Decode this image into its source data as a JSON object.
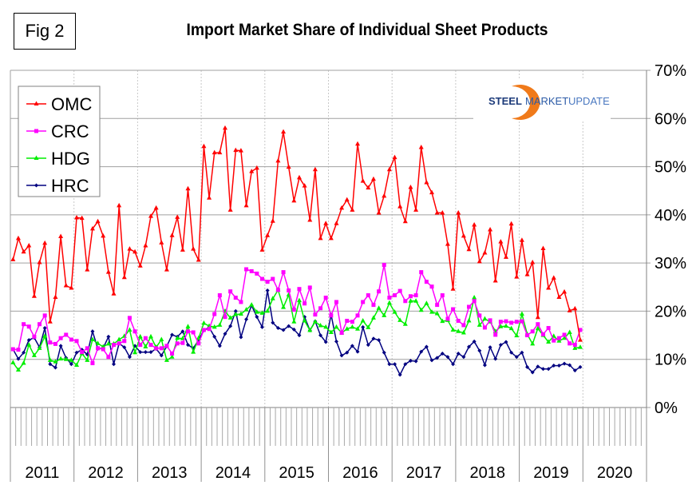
{
  "figure": {
    "label": "Fig 2"
  },
  "logo": {
    "word1": "STEEL",
    "word2": "MARKET",
    "word3": "UPDATE"
  },
  "chart_data": {
    "type": "line",
    "title": "Import Market Share of Individual Sheet Products",
    "xlabel": "",
    "ylabel": "",
    "ylim": [
      0,
      70
    ],
    "y_ticks": [
      "0%",
      "10%",
      "20%",
      "30%",
      "40%",
      "50%",
      "60%",
      "70%"
    ],
    "y_tick_values": [
      0,
      10,
      20,
      30,
      40,
      50,
      60,
      70
    ],
    "x_categories": [
      "2011",
      "2012",
      "2013",
      "2014",
      "2015",
      "2016",
      "2017",
      "2018",
      "2019",
      "2020"
    ],
    "x_frequency": "monthly",
    "x_start": "Jan 2011",
    "x_end": "Dec 2019",
    "grid": true,
    "legend_position": "top-left",
    "series": [
      {
        "name": "OMC",
        "color": "#ff0000",
        "marker": "triangle",
        "values": [
          30.7,
          35.1,
          32.3,
          33.6,
          23.1,
          30.1,
          34.1,
          17.8,
          22.9,
          35.5,
          25.3,
          24.8,
          39.4,
          39.3,
          28.6,
          37.1,
          38.6,
          35.6,
          28.1,
          23.6,
          41.9,
          27.0,
          32.9,
          32.3,
          29.4,
          33.6,
          39.7,
          41.4,
          34.2,
          28.6,
          35.7,
          39.5,
          32.7,
          45.4,
          32.9,
          30.6,
          54.2,
          43.5,
          52.9,
          52.9,
          58.0,
          41.0,
          53.4,
          53.3,
          41.9,
          49.0,
          49.7,
          32.7,
          35.7,
          38.7,
          51.2,
          57.2,
          49.9,
          42.9,
          47.7,
          46.0,
          38.9,
          49.4,
          35.1,
          38.2,
          35.1,
          38.2,
          41.4,
          43.1,
          41.0,
          54.7,
          47.0,
          45.6,
          47.4,
          40.4,
          43.9,
          49.4,
          51.9,
          41.7,
          38.6,
          45.7,
          41.0,
          54.0,
          46.7,
          44.6,
          40.4,
          40.4,
          33.9,
          24.6,
          40.4,
          35.6,
          32.8,
          37.9,
          30.3,
          32.1,
          36.9,
          26.3,
          34.4,
          31.2,
          38.1,
          27.1,
          34.7,
          27.6,
          30.1,
          18.7,
          33.0,
          24.8,
          26.9,
          22.9,
          24.0,
          20.1,
          20.5,
          14.0
        ]
      },
      {
        "name": "CRC",
        "color": "#ff00ff",
        "marker": "square",
        "values": [
          12.1,
          12.0,
          17.3,
          16.8,
          14.7,
          17.3,
          19.1,
          13.5,
          13.2,
          14.4,
          15.1,
          14.1,
          13.8,
          11.5,
          12.3,
          9.2,
          12.3,
          12.1,
          10.5,
          13.0,
          13.3,
          13.8,
          18.6,
          15.8,
          13.0,
          14.4,
          13.0,
          12.3,
          12.3,
          12.8,
          11.2,
          13.3,
          13.4,
          15.8,
          15.6,
          13.3,
          16.1,
          16.3,
          19.4,
          23.3,
          18.8,
          24.1,
          22.8,
          21.9,
          28.7,
          28.3,
          27.8,
          26.7,
          26.1,
          26.7,
          24.4,
          28.1,
          24.3,
          20.3,
          24.6,
          21.6,
          24.9,
          19.3,
          20.6,
          22.8,
          19.1,
          21.9,
          15.5,
          18.0,
          17.8,
          19.1,
          21.9,
          23.3,
          21.3,
          24.1,
          29.6,
          22.8,
          23.3,
          24.2,
          22.1,
          23.1,
          23.3,
          28.1,
          26.1,
          25.1,
          21.3,
          23.3,
          18.4,
          20.4,
          18.0,
          17.1,
          20.9,
          22.1,
          19.1,
          16.6,
          18.1,
          15.1,
          17.8,
          17.9,
          17.6,
          17.8,
          17.9,
          15.0,
          15.8,
          17.3,
          15.2,
          16.5,
          13.9,
          14.4,
          15.1,
          13.3,
          13.0,
          16.1
        ]
      },
      {
        "name": "HDG",
        "color": "#00ee00",
        "marker": "triangle",
        "values": [
          9.3,
          7.8,
          9.2,
          13.0,
          10.8,
          12.3,
          14.8,
          9.8,
          9.5,
          10.1,
          10.0,
          9.8,
          8.8,
          11.2,
          9.8,
          14.1,
          13.3,
          12.6,
          13.2,
          13.2,
          14.1,
          14.8,
          16.1,
          11.4,
          14.7,
          12.6,
          14.7,
          12.5,
          14.1,
          9.8,
          10.5,
          14.4,
          14.3,
          16.8,
          11.5,
          14.4,
          17.5,
          16.9,
          16.7,
          17.1,
          20.0,
          18.6,
          19.3,
          19.4,
          20.3,
          21.3,
          19.8,
          19.6,
          20.0,
          22.6,
          24.4,
          20.8,
          23.4,
          17.8,
          22.2,
          18.0,
          16.0,
          17.8,
          17.0,
          16.7,
          15.6,
          16.7,
          15.5,
          16.3,
          16.7,
          16.3,
          18.0,
          16.6,
          18.6,
          20.6,
          19.1,
          21.7,
          19.8,
          18.1,
          17.3,
          22.1,
          22.1,
          20.2,
          21.6,
          19.8,
          19.5,
          17.9,
          18.1,
          16.1,
          15.8,
          15.5,
          18.0,
          22.8,
          17.1,
          18.4,
          17.8,
          15.8,
          16.8,
          16.9,
          16.4,
          14.9,
          19.4,
          15.2,
          13.2,
          16.4,
          15.0,
          13.6,
          14.8,
          13.8,
          14.4,
          15.6,
          12.3,
          12.5
        ]
      },
      {
        "name": "HRC",
        "color": "#000080",
        "marker": "diamond",
        "values": [
          12.1,
          10.1,
          11.4,
          14.0,
          14.5,
          12.5,
          16.5,
          9.0,
          8.3,
          12.8,
          10.3,
          9.0,
          11.4,
          12.0,
          11.0,
          15.8,
          12.2,
          12.3,
          14.7,
          9.0,
          13.3,
          12.5,
          10.5,
          12.8,
          11.5,
          11.5,
          11.5,
          12.2,
          10.8,
          12.7,
          15.1,
          14.7,
          15.8,
          13.0,
          12.3,
          14.0,
          16.0,
          16.6,
          14.7,
          12.8,
          15.3,
          16.9,
          20.0,
          14.6,
          18.3,
          21.2,
          18.8,
          16.7,
          24.3,
          17.6,
          16.5,
          16.1,
          16.9,
          16.2,
          15.0,
          18.8,
          16.0,
          17.9,
          15.0,
          13.6,
          19.3,
          13.7,
          10.8,
          11.4,
          12.8,
          11.6,
          16.7,
          13.0,
          14.3,
          14.0,
          11.4,
          9.0,
          9.0,
          6.8,
          9.0,
          9.7,
          9.6,
          11.6,
          12.6,
          9.8,
          10.3,
          11.2,
          10.5,
          9.0,
          11.2,
          10.5,
          12.6,
          13.7,
          11.8,
          8.8,
          12.5,
          10.1,
          13.0,
          13.6,
          11.4,
          10.5,
          11.4,
          8.4,
          7.3,
          8.5,
          8.0,
          8.0,
          8.7,
          8.7,
          9.1,
          8.8,
          7.7,
          8.4
        ]
      }
    ]
  }
}
